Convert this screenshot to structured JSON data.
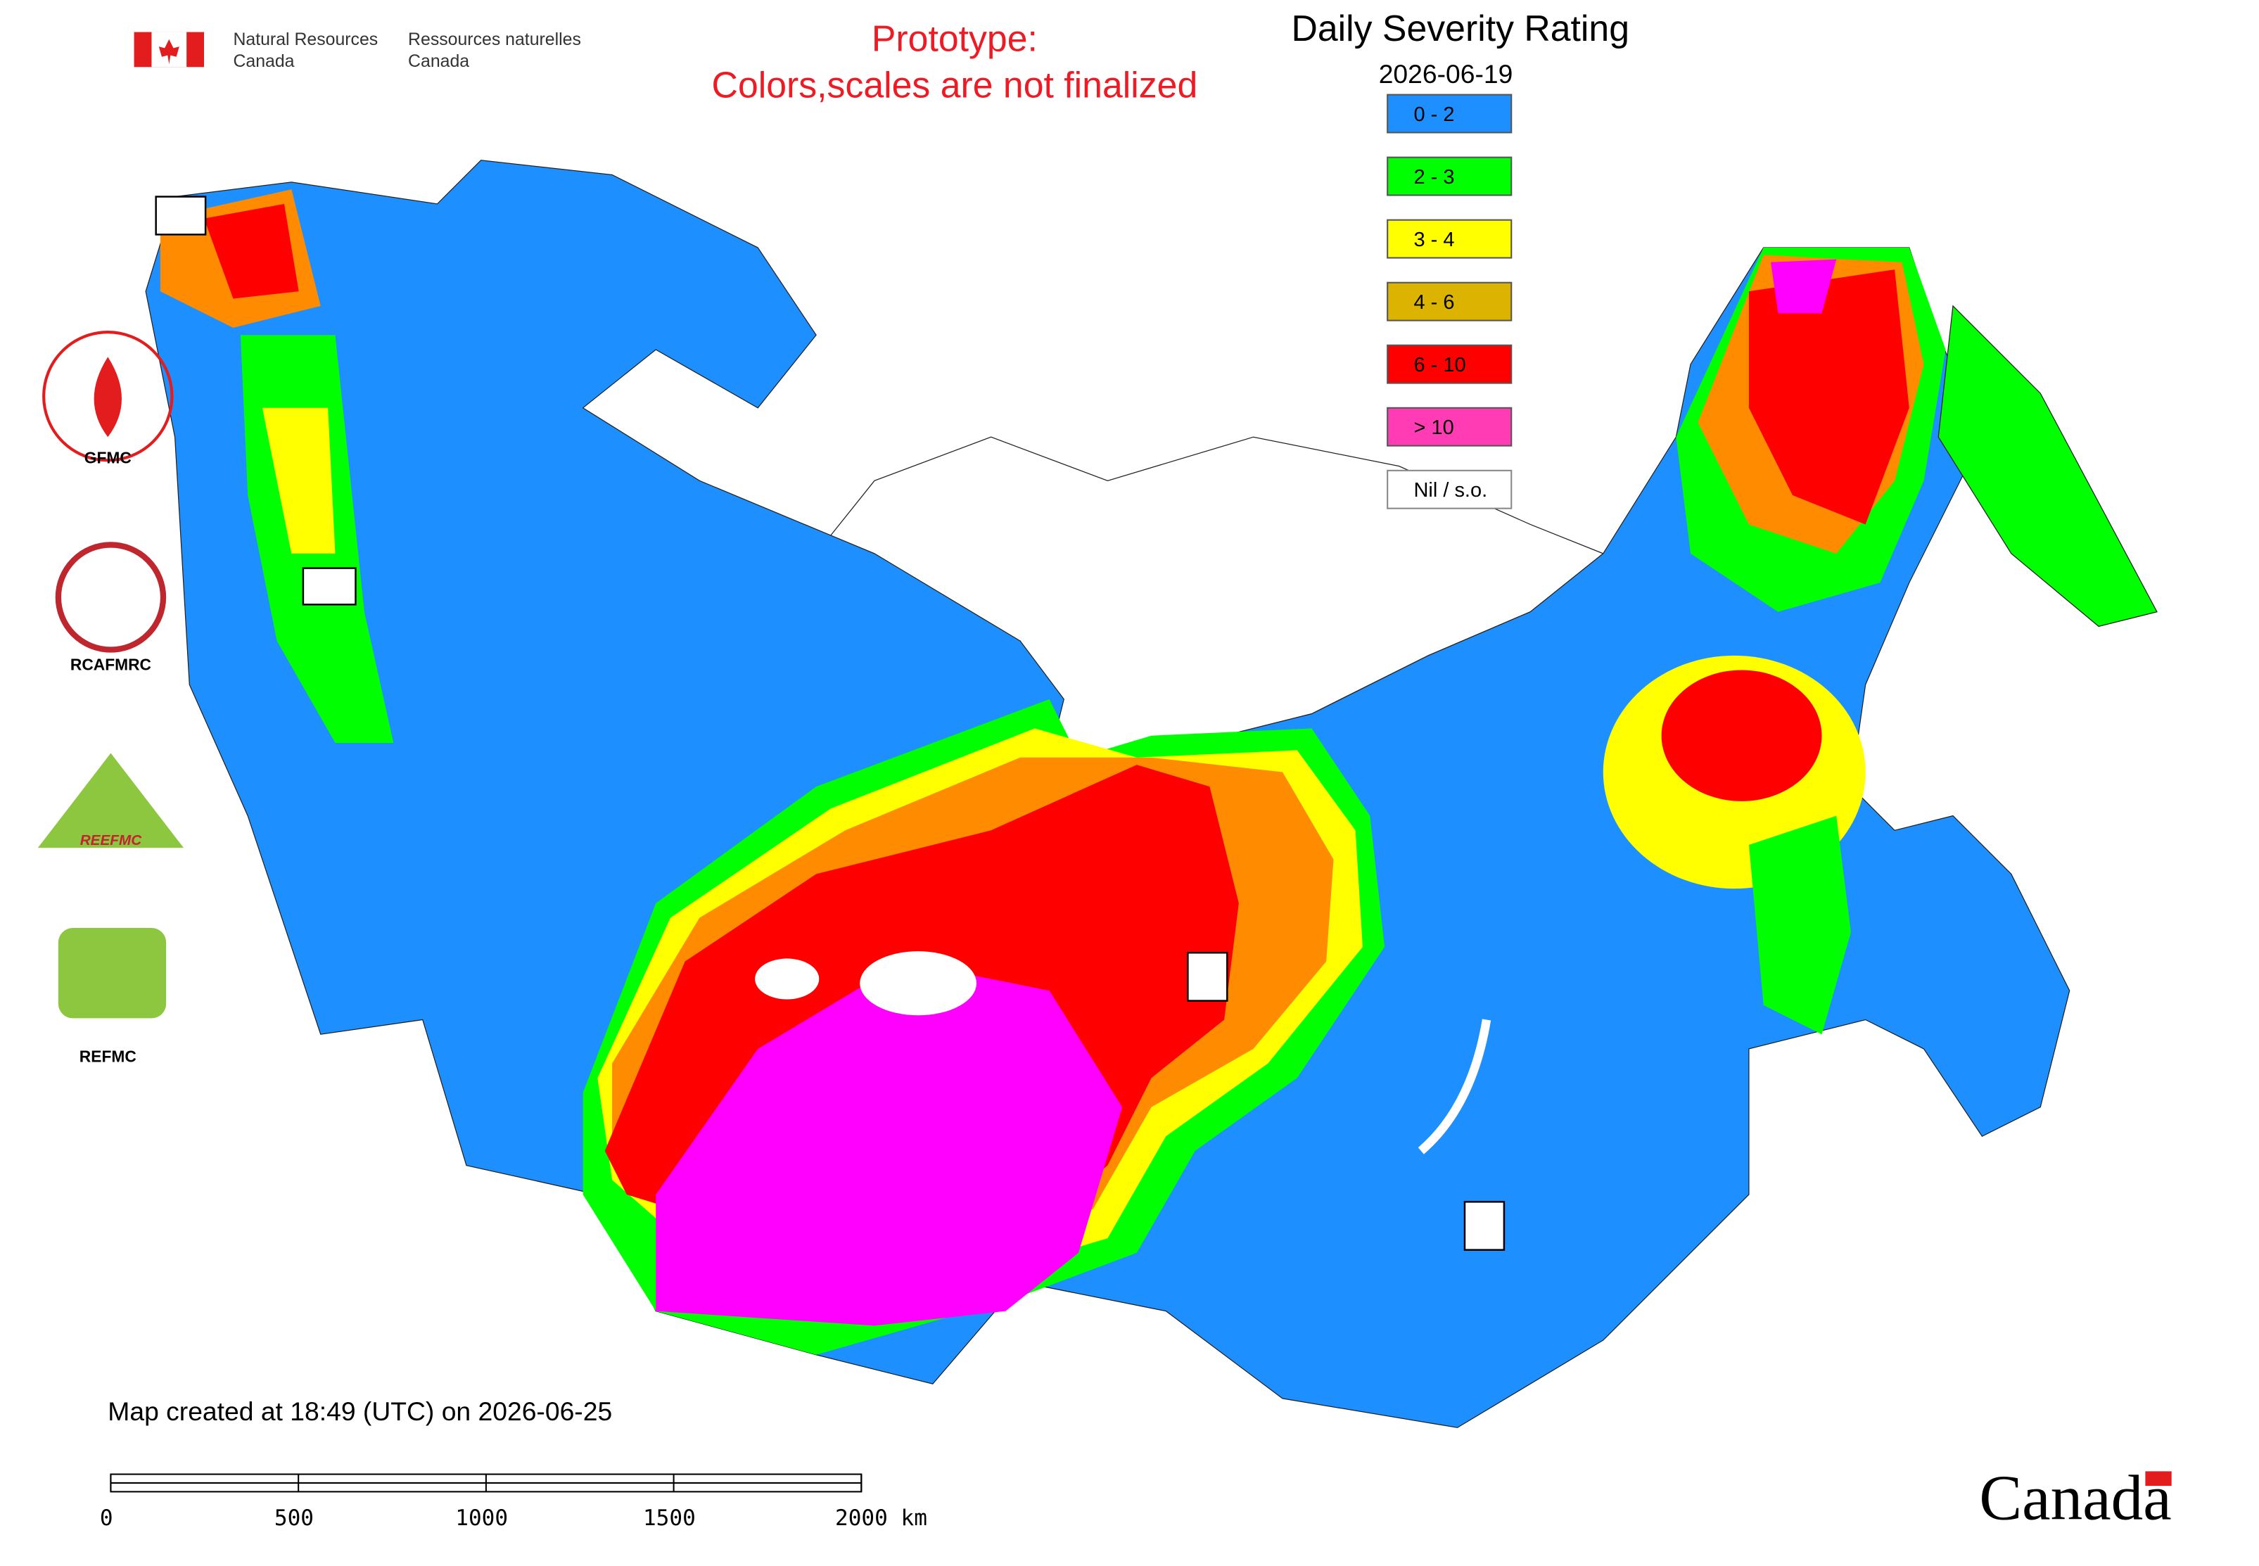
{
  "header": {
    "org_en": [
      "Natural Resources",
      "Canada"
    ],
    "org_fr": [
      "Ressources naturelles",
      "Canada"
    ]
  },
  "notice": [
    "Prototype:",
    "Colors,scales are not finalized"
  ],
  "legend": {
    "title": "Daily Severity Rating",
    "date": "2026-06-19",
    "items": [
      {
        "label": "0 - 2",
        "color": "#1e8fff"
      },
      {
        "label": "2 - 3",
        "color": "#00ff00"
      },
      {
        "label": "3 - 4",
        "color": "#ffff00"
      },
      {
        "label": "4 - 6",
        "color": "#dcb400"
      },
      {
        "label": "6 - 10",
        "color": "#ff0000"
      },
      {
        "label": "> 10",
        "color": "#ff3cb4"
      },
      {
        "label": "Nil / s.o.",
        "color": "#ffffff"
      }
    ]
  },
  "logos": [
    "GFMC",
    "RCAFMRC",
    "REEFMC",
    "REFMC"
  ],
  "footer": {
    "created": "Map created at 18:49 (UTC) on 2026-06-25",
    "scale_labels": [
      "0",
      "500",
      "1000",
      "1500",
      "2000 km"
    ],
    "wordmark": "Canada"
  }
}
